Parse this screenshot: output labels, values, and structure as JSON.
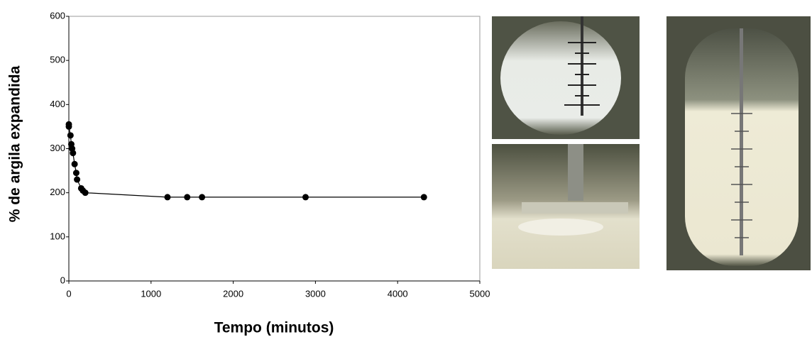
{
  "chart_data": {
    "type": "line",
    "xlabel": "Tempo (minutos)",
    "ylabel": "% de argila expandida",
    "x": [
      0,
      0,
      20,
      30,
      40,
      50,
      70,
      90,
      100,
      150,
      170,
      200,
      1200,
      1440,
      1620,
      2880,
      4320
    ],
    "values": [
      355,
      350,
      330,
      310,
      300,
      290,
      265,
      245,
      230,
      210,
      205,
      200,
      190,
      190,
      190,
      190,
      190
    ],
    "color": "#000000",
    "xlim": [
      0,
      5000
    ],
    "xticks": [
      0,
      1000,
      2000,
      3000,
      4000,
      5000
    ],
    "ylim": [
      0,
      600
    ],
    "yticks": [
      0,
      100,
      200,
      300,
      400,
      500,
      600
    ],
    "grid": false
  }
}
